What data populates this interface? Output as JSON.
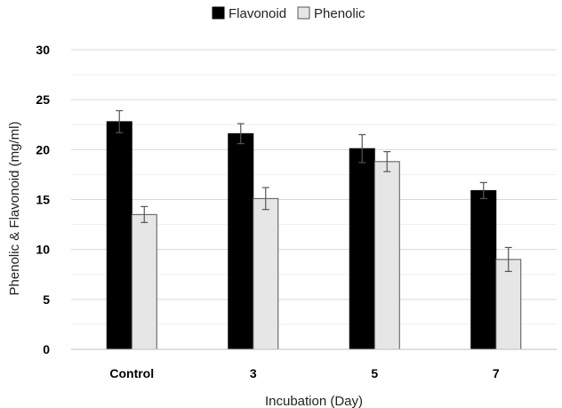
{
  "chart_data": {
    "type": "bar",
    "categories": [
      "Control",
      "3",
      "5",
      "7"
    ],
    "series": [
      {
        "name": "Flavonoid",
        "values": [
          22.8,
          21.6,
          20.1,
          15.9
        ],
        "errors": [
          1.1,
          1.0,
          1.4,
          0.8
        ],
        "color": "#000000"
      },
      {
        "name": "Phenolic",
        "values": [
          13.5,
          15.1,
          18.8,
          9.0
        ],
        "errors": [
          0.8,
          1.1,
          1.0,
          1.2
        ],
        "color": "#e6e6e6"
      }
    ],
    "title": "",
    "xlabel": "Incubation (Day)",
    "ylabel": "Phenolic & Flavonoid (mg/ml)",
    "ylim": [
      0,
      30
    ],
    "yticks": [
      "0",
      "5",
      "10",
      "15",
      "20",
      "25",
      "30"
    ],
    "grid": true,
    "legend_position": "top-center"
  }
}
